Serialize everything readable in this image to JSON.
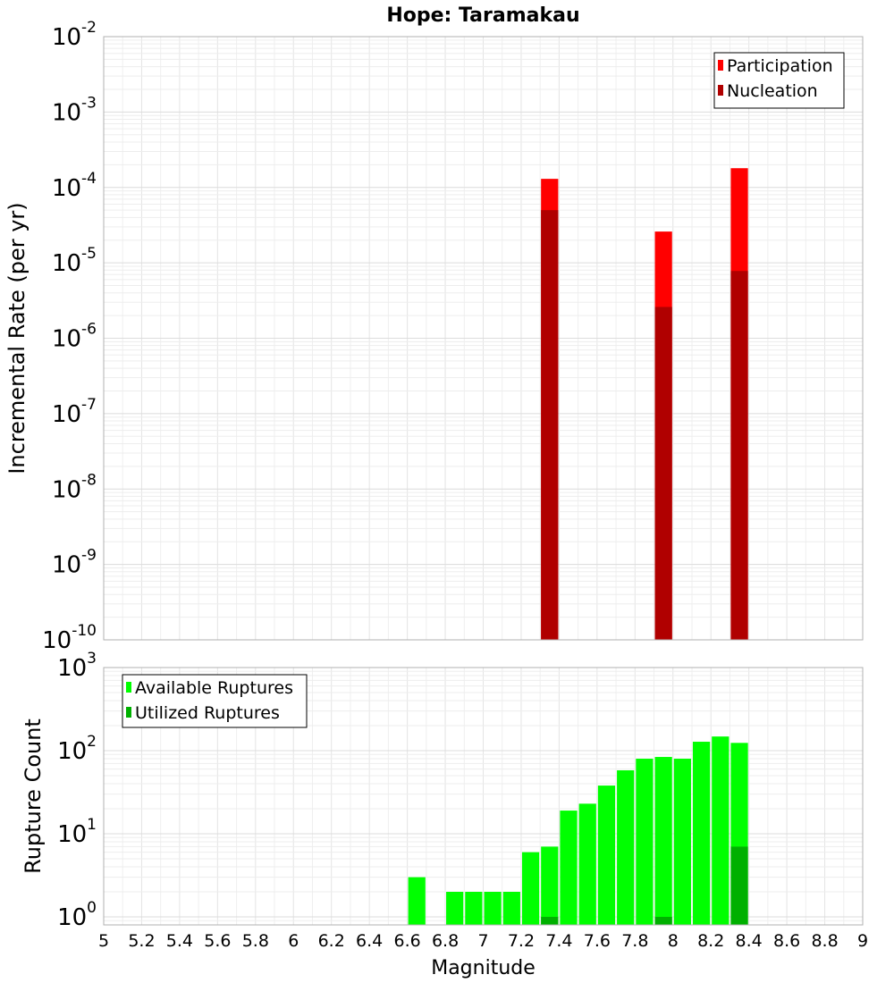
{
  "chart_data": [
    {
      "type": "bar",
      "title": "Hope: Taramakau",
      "ylabel": "Incremental Rate (per yr)",
      "xlabel": "",
      "y_scale": "log",
      "ylim": [
        1e-10,
        0.01
      ],
      "xlim": [
        5,
        9
      ],
      "grid": true,
      "legend_position": "top-right",
      "series": [
        {
          "name": "Participation",
          "color": "#ff0000",
          "x": [
            7.35,
            7.95,
            8.35
          ],
          "values": [
            0.00013,
            2.6e-05,
            0.00018
          ]
        },
        {
          "name": "Nucleation",
          "color": "#b00000",
          "x": [
            7.35,
            7.95,
            8.35
          ],
          "values": [
            5e-05,
            2.6e-06,
            7.8e-06
          ]
        }
      ]
    },
    {
      "type": "bar",
      "title": "",
      "ylabel": "Rupture Count",
      "xlabel": "Magnitude",
      "y_scale": "log",
      "ylim": [
        0.8,
        1000
      ],
      "xlim": [
        5,
        9
      ],
      "x_ticks": [
        "5",
        "5.2",
        "5.4",
        "5.6",
        "5.8",
        "6",
        "6.2",
        "6.4",
        "6.6",
        "6.8",
        "7",
        "7.2",
        "7.4",
        "7.6",
        "7.8",
        "8",
        "8.2",
        "8.4",
        "8.6",
        "8.8",
        "9"
      ],
      "grid": true,
      "legend_position": "top-left",
      "series": [
        {
          "name": "Available Ruptures",
          "color": "#00ff00",
          "x": [
            6.65,
            6.85,
            6.95,
            7.05,
            7.15,
            7.25,
            7.35,
            7.45,
            7.55,
            7.65,
            7.75,
            7.85,
            7.95,
            8.05,
            8.15,
            8.25,
            8.35
          ],
          "values": [
            3,
            2,
            2,
            2,
            2,
            6,
            7,
            19,
            23,
            38,
            58,
            80,
            84,
            80,
            128,
            148,
            124
          ]
        },
        {
          "name": "Utilized Ruptures",
          "color": "#00b000",
          "x": [
            7.35,
            7.95,
            8.35
          ],
          "values": [
            1,
            1,
            7
          ]
        }
      ]
    }
  ]
}
